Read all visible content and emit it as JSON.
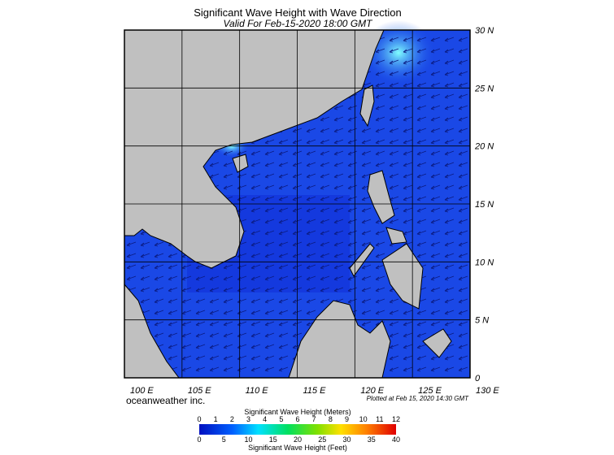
{
  "header": {
    "title": "Significant Wave Height with Wave Direction",
    "subtitle": "Valid For Feb-15-2020 18:00 GMT"
  },
  "map": {
    "lat_labels": [
      "30 N",
      "25 N",
      "20 N",
      "15 N",
      "10 N",
      "5 N",
      "0"
    ],
    "lon_labels": [
      "100 E",
      "105 E",
      "110 E",
      "115 E",
      "120 E",
      "125 E",
      "130 E"
    ],
    "credit": "oceanweather inc.",
    "plotted": "Plotted at Feb 15, 2020 14:30 GMT"
  },
  "colorbar": {
    "meters_title": "Significant Wave Height (Meters)",
    "meters_ticks": [
      0,
      1,
      2,
      3,
      4,
      5,
      6,
      7,
      8,
      9,
      10,
      11,
      12
    ],
    "feet_title": "Significant Wave Height (Feet)",
    "feet_ticks": [
      0,
      5,
      10,
      15,
      20,
      25,
      30,
      35,
      40
    ]
  }
}
